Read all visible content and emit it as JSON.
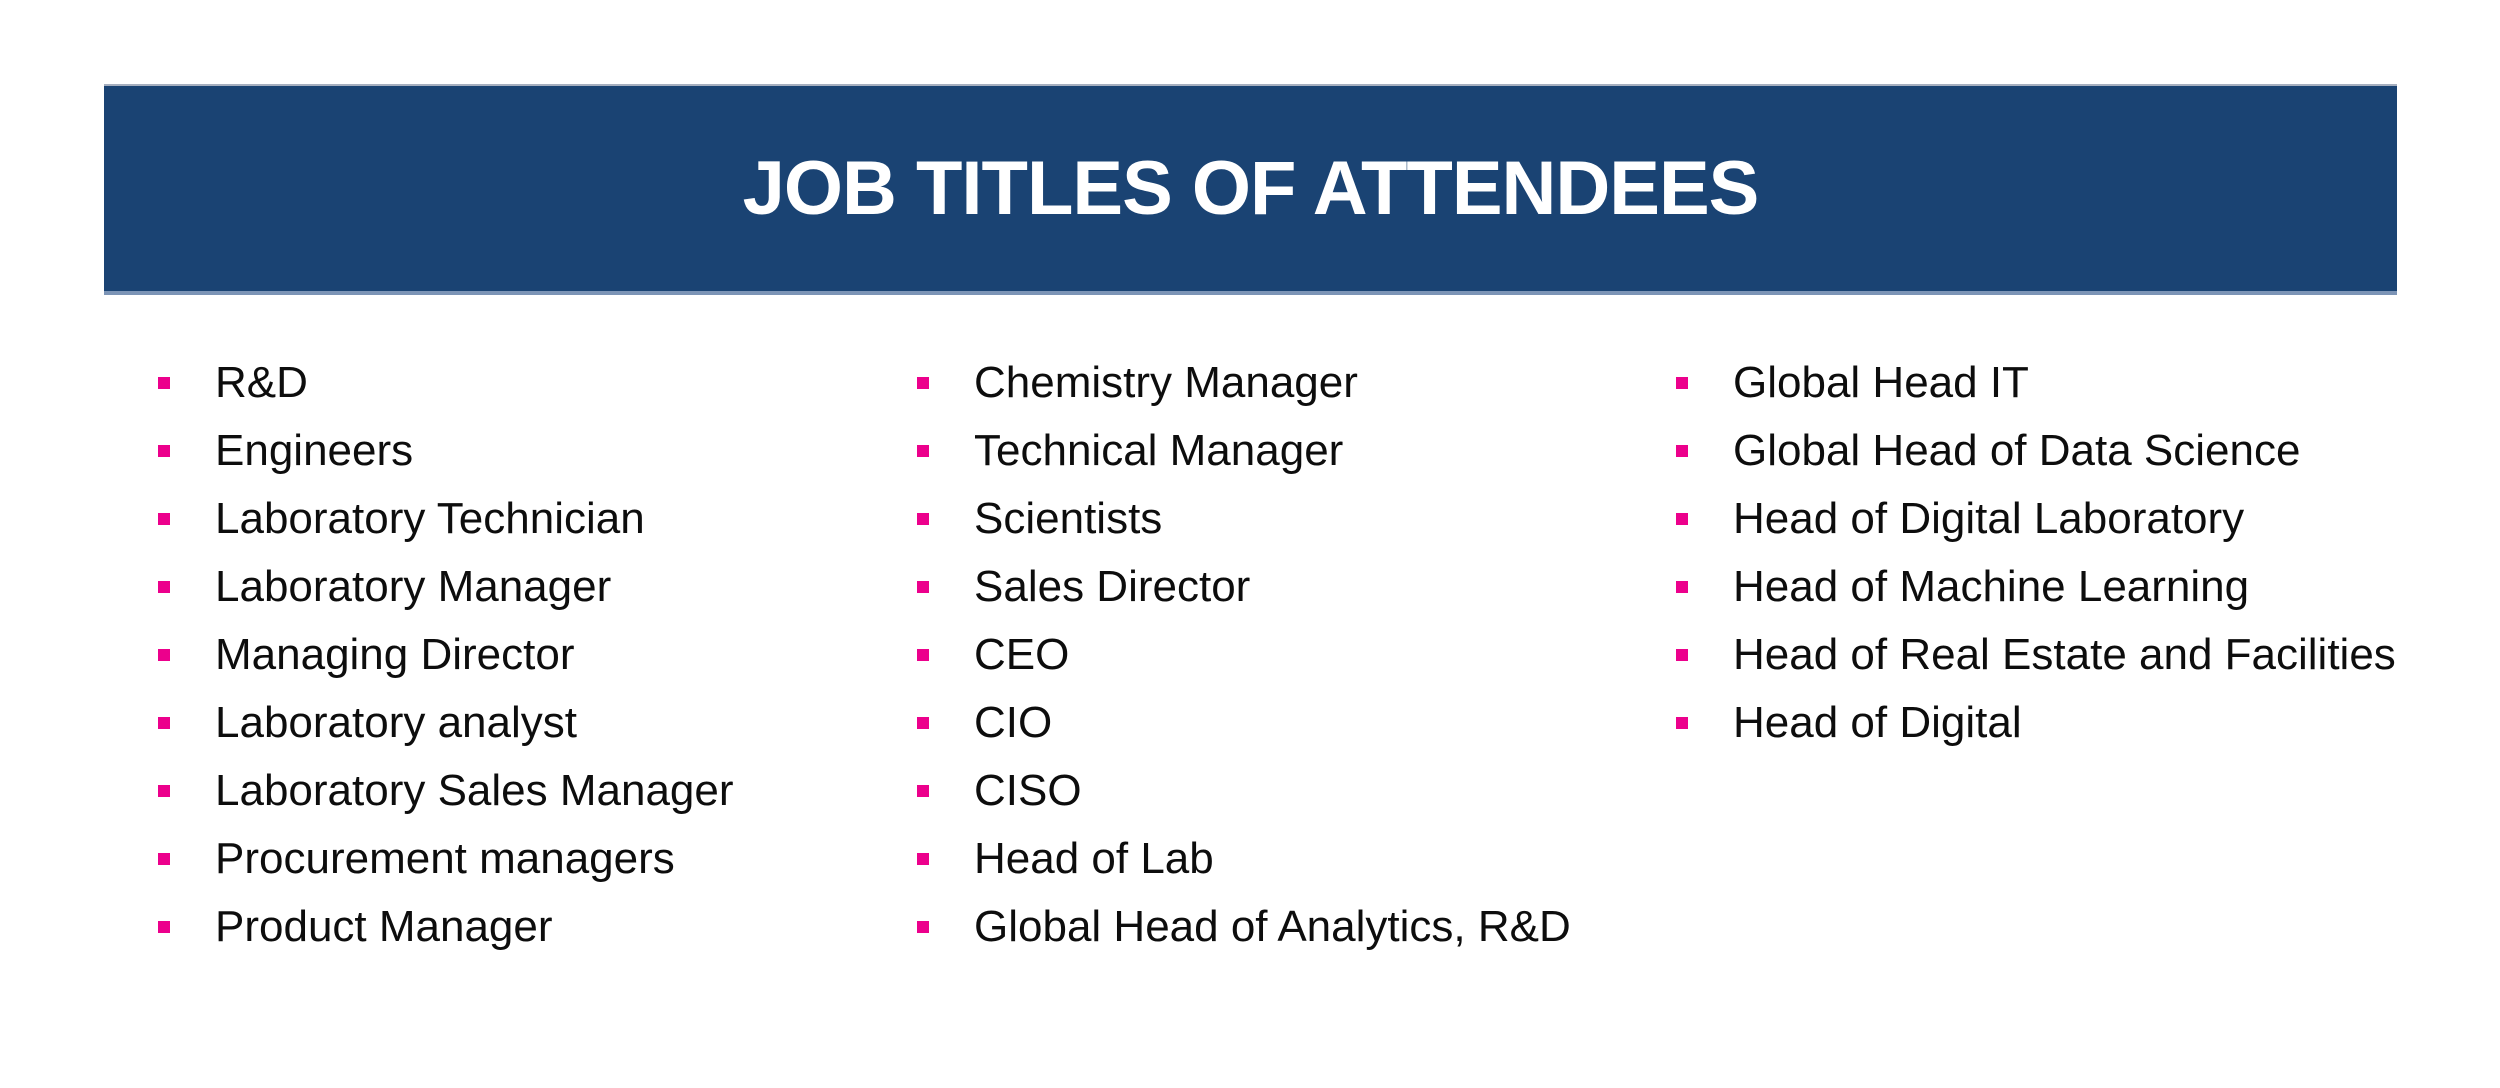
{
  "page": {
    "background_color": "#ffffff"
  },
  "banner": {
    "title": "JOB TITLES OF ATTENDEES",
    "bg_color": "#1A4373",
    "text_color": "#ffffff",
    "edge_top_color": "#A6AFBF",
    "edge_bottom_color": "#7C94B6"
  },
  "list": {
    "bullet_color": "#EC008C",
    "text_color": "#0d0d0d",
    "bullet_icon": "square-bullet",
    "columns": [
      {
        "items": [
          "R&D",
          "Engineers",
          "Laboratory Technician",
          "Laboratory Manager",
          "Managing Director",
          "Laboratory analyst",
          "Laboratory Sales Manager",
          "Procurement managers",
          "Product Manager"
        ]
      },
      {
        "items": [
          "Chemistry Manager",
          "Technical Manager",
          "Scientists",
          "Sales Director",
          "CEO",
          "CIO",
          "CISO",
          "Head of Lab",
          "Global Head of Analytics, R&D"
        ]
      },
      {
        "items": [
          "Global Head IT",
          "Global Head of Data Science",
          "Head of Digital Laboratory",
          "Head of Machine Learning",
          "Head of Real Estate and Facilities",
          "Head of Digital"
        ]
      }
    ]
  }
}
